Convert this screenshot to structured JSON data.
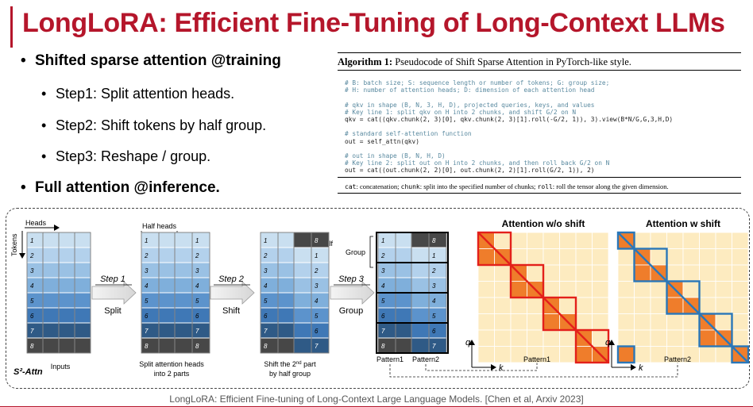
{
  "slide": {
    "title": "LongLoRA: Efficient Fine-Tuning of Long-Context LLMs",
    "bullets": [
      {
        "text": "Shifted sparse attention @training",
        "level": 1
      },
      {
        "text": "Step1: Split attention heads.",
        "level": 2
      },
      {
        "text": "Step2: Shift tokens by half group.",
        "level": 2
      },
      {
        "text": "Step3: Reshape / group.",
        "level": 2
      },
      {
        "text": "Full attention @inference.",
        "level": 1
      }
    ],
    "citation": "LongLoRA: Efficient Fine-tuning of Long-Context Large Language Models. [Chen et al, Arxiv 2023]"
  },
  "algorithm": {
    "label": "Algorithm 1:",
    "caption": "Pseudocode of Shift Sparse Attention in PyTorch-like style.",
    "code_lines": [
      {
        "text": "# B: batch size; S: sequence length or number of tokens; G: group size;",
        "comment": true
      },
      {
        "text": "# H: number of attention heads; D: dimension of each attention head",
        "comment": true
      },
      {
        "text": "",
        "comment": false
      },
      {
        "text": "# qkv in shape (B, N, 3, H, D), projected queries, keys, and values",
        "comment": true
      },
      {
        "text": "# Key line 1: split qkv on H into 2 chunks, and shift G/2 on N",
        "comment": true
      },
      {
        "text": "qkv = cat((qkv.chunk(2, 3)[0], qkv.chunk(2, 3)[1].roll(-G/2, 1)), 3).view(B*N/G,G,3,H,D)",
        "comment": false
      },
      {
        "text": "",
        "comment": false
      },
      {
        "text": "# standard self-attention function",
        "comment": true
      },
      {
        "text": "out = self_attn(qkv)",
        "comment": false
      },
      {
        "text": "",
        "comment": false
      },
      {
        "text": "# out in shape (B, N, H, D)",
        "comment": true
      },
      {
        "text": "# Key line 2: split out on H into 2 chunks, and then roll back G/2 on N",
        "comment": true
      },
      {
        "text": "out = cat((out.chunk(2, 2)[0], out.chunk(2, 2)[1].roll(G/2, 1)), 2)",
        "comment": false
      }
    ],
    "footnote": {
      "t1": "cat",
      "d1": ": concatenation; ",
      "t2": "chunk",
      "d2": ": split into the specified number of chunks; ",
      "t3": "roll",
      "d3": ": roll the tensor along the given dimension."
    }
  },
  "diagram": {
    "heads_label": "Heads",
    "tokens_label": "Tokens",
    "half_heads_label": "Half heads",
    "half_label": "Half",
    "group_label": "Group",
    "steps": [
      {
        "name": "Step 1",
        "action": "Split"
      },
      {
        "name": "Step 2",
        "action": "Shift"
      },
      {
        "name": "Step 3",
        "action": "Group"
      }
    ],
    "inputs_caption": "Inputs",
    "split_caption": [
      "Split attention heads",
      "into 2 parts"
    ],
    "shift_caption": {
      "before": "Shift the 2",
      "sup": "nd",
      "after": " part",
      "line2": "by half group"
    },
    "group_captions": [
      "Pattern1",
      "Pattern2"
    ],
    "s2attn_label": "S²-Attn",
    "token_labels": [
      "1",
      "2",
      "3",
      "4",
      "5",
      "6",
      "7",
      "8"
    ],
    "shifted_token_labels": [
      "8",
      "1",
      "2",
      "3",
      "4",
      "5",
      "6",
      "7"
    ],
    "token_colors": [
      "#c9dff0",
      "#b3d1ec",
      "#9ac1e4",
      "#7fafdb",
      "#5c93cc",
      "#3f78b6",
      "#2f5a86",
      "#474747"
    ],
    "attention_wo_title": "Attention w/o shift",
    "attention_w_title": "Attention w shift",
    "q_label": "q",
    "k_label": "k",
    "pattern1_label": "Pattern1",
    "pattern2_label": "Pattern2",
    "colors": {
      "cell_bg": "#fdebc0",
      "block": "#ef7d2b",
      "red": "#e3201b",
      "blue": "#2a77b9"
    }
  }
}
